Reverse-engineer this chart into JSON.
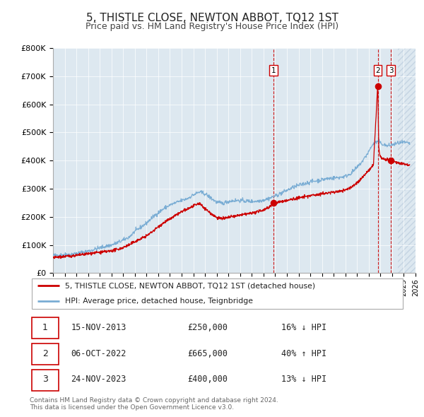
{
  "title": "5, THISTLE CLOSE, NEWTON ABBOT, TQ12 1ST",
  "subtitle": "Price paid vs. HM Land Registry's House Price Index (HPI)",
  "title_fontsize": 11,
  "subtitle_fontsize": 9,
  "legend_line1": "5, THISTLE CLOSE, NEWTON ABBOT, TQ12 1ST (detached house)",
  "legend_line2": "HPI: Average price, detached house, Teignbridge",
  "red_color": "#cc0000",
  "blue_color": "#7aadd4",
  "grid_color": "#ffffff",
  "background_chart": "#dde8f0",
  "transactions": [
    {
      "num": 1,
      "date": "15-NOV-2013",
      "price": 250000,
      "price_str": "£250,000",
      "pct": "16%",
      "dir": "↓",
      "year_x": 2013.87
    },
    {
      "num": 2,
      "date": "06-OCT-2022",
      "price": 665000,
      "price_str": "£665,000",
      "pct": "40%",
      "dir": "↑",
      "year_x": 2022.77
    },
    {
      "num": 3,
      "date": "24-NOV-2023",
      "price": 400000,
      "price_str": "£400,000",
      "pct": "13%",
      "dir": "↓",
      "year_x": 2023.9
    }
  ],
  "footer": "Contains HM Land Registry data © Crown copyright and database right 2024.\nThis data is licensed under the Open Government Licence v3.0.",
  "xlim": [
    1995,
    2026
  ],
  "ylim": [
    0,
    800000
  ],
  "yticks": [
    0,
    100000,
    200000,
    300000,
    400000,
    500000,
    600000,
    700000,
    800000
  ],
  "ytick_labels": [
    "£0",
    "£100K",
    "£200K",
    "£300K",
    "£400K",
    "£500K",
    "£600K",
    "£700K",
    "£800K"
  ]
}
